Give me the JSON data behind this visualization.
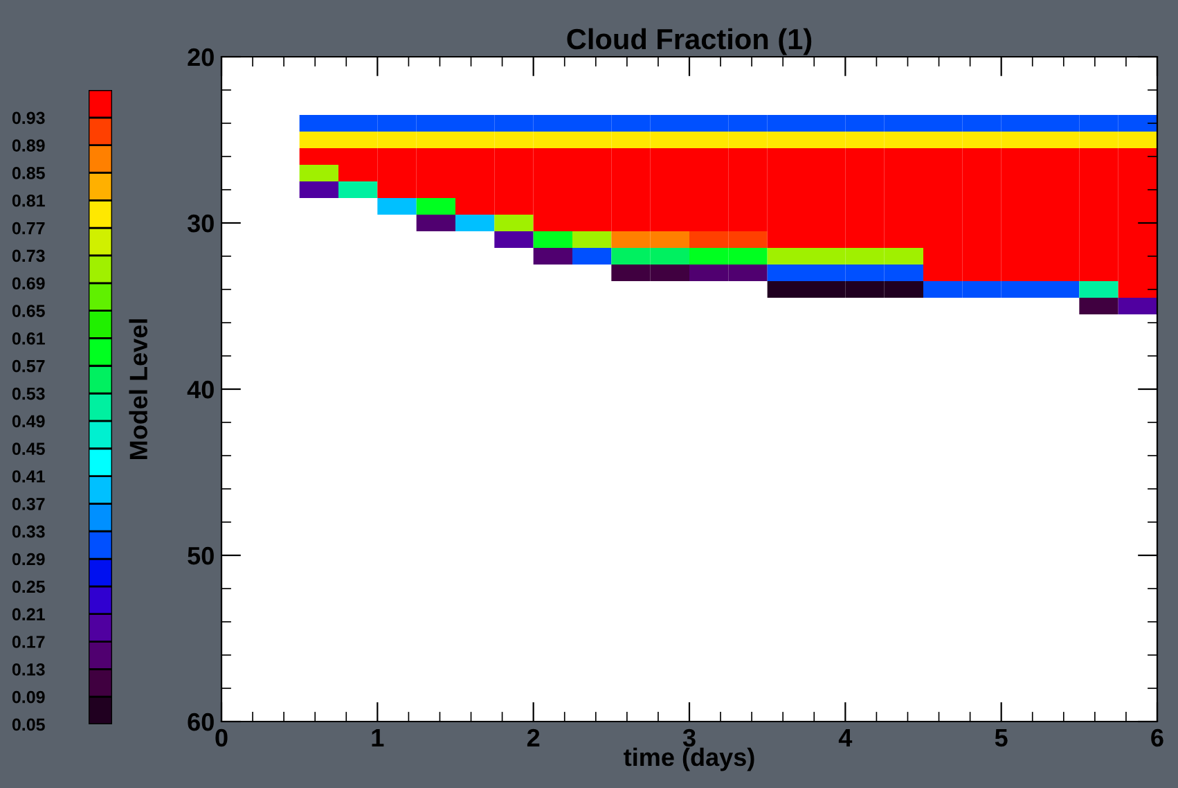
{
  "chart_data": {
    "type": "heatmap",
    "title": "Cloud Fraction (1)",
    "xlabel": "time (days)",
    "ylabel": "Model Level",
    "x": [
      0.625,
      0.875,
      1.125,
      1.375,
      1.625,
      1.875,
      2.125,
      2.375,
      2.625,
      2.875,
      3.125,
      3.375,
      3.625,
      3.875,
      4.125,
      4.375,
      4.625,
      4.875,
      5.125,
      5.375,
      5.625,
      5.875
    ],
    "y": [
      24,
      25,
      26,
      27,
      28,
      29,
      30,
      31,
      32,
      33,
      34,
      35
    ],
    "xlim": [
      0,
      6
    ],
    "xticks": [
      0,
      1,
      2,
      3,
      4,
      5,
      6
    ],
    "ylim": [
      60,
      20
    ],
    "yticks": [
      20,
      30,
      40,
      50,
      60
    ],
    "clim": [
      0.05,
      0.97
    ],
    "cticks": [
      0.05,
      0.09,
      0.13,
      0.17,
      0.21,
      0.25,
      0.29,
      0.33,
      0.37,
      0.41,
      0.45,
      0.49,
      0.53,
      0.57,
      0.61,
      0.65,
      0.69,
      0.73,
      0.77,
      0.81,
      0.85,
      0.89,
      0.93
    ],
    "colors": [
      "#200020",
      "#400040",
      "#500070",
      "#5000a0",
      "#3000d0",
      "#0010f0",
      "#0050ff",
      "#0090ff",
      "#00c0ff",
      "#00ffff",
      "#00f0d0",
      "#00f0a0",
      "#00f060",
      "#00ff20",
      "#20f000",
      "#60f000",
      "#a0f000",
      "#d0f000",
      "#ffe800",
      "#ffb000",
      "#ff8000",
      "#ff4000",
      "#ff0000"
    ],
    "cells": [
      [
        0.3,
        0.3,
        0.3,
        0.3,
        0.3,
        0.3,
        0.3,
        0.3,
        0.3,
        0.3,
        0.3,
        0.3,
        0.3,
        0.3,
        0.3,
        0.3,
        0.3,
        0.3,
        0.3,
        0.3,
        0.3,
        0.3
      ],
      [
        0.8,
        0.8,
        0.8,
        0.8,
        0.8,
        0.8,
        0.8,
        0.8,
        0.8,
        0.8,
        0.8,
        0.8,
        0.8,
        0.8,
        0.8,
        0.8,
        0.8,
        0.8,
        0.8,
        0.8,
        0.8,
        0.8
      ],
      [
        0.95,
        0.95,
        0.95,
        0.95,
        0.95,
        0.95,
        0.95,
        0.95,
        0.95,
        0.95,
        0.95,
        0.95,
        0.95,
        0.95,
        0.95,
        0.95,
        0.95,
        0.95,
        0.95,
        0.95,
        0.95,
        0.95
      ],
      [
        0.7,
        0.95,
        0.95,
        0.95,
        0.95,
        0.95,
        0.95,
        0.95,
        0.95,
        0.95,
        0.95,
        0.95,
        0.95,
        0.95,
        0.95,
        0.95,
        0.95,
        0.95,
        0.95,
        0.95,
        0.95,
        0.95
      ],
      [
        0.2,
        0.5,
        0.95,
        0.95,
        0.95,
        0.95,
        0.95,
        0.95,
        0.95,
        0.95,
        0.95,
        0.95,
        0.95,
        0.95,
        0.95,
        0.95,
        0.95,
        0.95,
        0.95,
        0.95,
        0.95,
        0.95
      ],
      [
        null,
        null,
        0.4,
        0.6,
        0.95,
        0.95,
        0.95,
        0.95,
        0.95,
        0.95,
        0.95,
        0.95,
        0.95,
        0.95,
        0.95,
        0.95,
        0.95,
        0.95,
        0.95,
        0.95,
        0.95,
        0.95
      ],
      [
        null,
        null,
        null,
        0.15,
        0.4,
        0.7,
        0.95,
        0.95,
        0.95,
        0.95,
        0.95,
        0.95,
        0.95,
        0.95,
        0.95,
        0.95,
        0.95,
        0.95,
        0.95,
        0.95,
        0.95,
        0.95
      ],
      [
        null,
        null,
        null,
        null,
        null,
        0.2,
        0.6,
        0.7,
        0.85,
        0.85,
        0.9,
        0.9,
        0.95,
        0.95,
        0.95,
        0.95,
        0.95,
        0.95,
        0.95,
        0.95,
        0.95,
        0.95
      ],
      [
        null,
        null,
        null,
        null,
        null,
        null,
        0.15,
        0.3,
        0.55,
        0.55,
        0.6,
        0.6,
        0.7,
        0.7,
        0.7,
        0.7,
        0.95,
        0.95,
        0.95,
        0.95,
        0.95,
        0.95
      ],
      [
        null,
        null,
        null,
        null,
        null,
        null,
        null,
        null,
        0.1,
        0.1,
        0.15,
        0.15,
        0.3,
        0.3,
        0.3,
        0.3,
        0.95,
        0.95,
        0.95,
        0.95,
        0.95,
        0.95
      ],
      [
        null,
        null,
        null,
        null,
        null,
        null,
        null,
        null,
        null,
        null,
        null,
        null,
        0.07,
        0.07,
        0.07,
        0.07,
        0.3,
        0.3,
        0.3,
        0.3,
        0.5,
        0.95
      ],
      [
        null,
        null,
        null,
        null,
        null,
        null,
        null,
        null,
        null,
        null,
        null,
        null,
        null,
        null,
        null,
        null,
        null,
        null,
        null,
        null,
        0.1,
        0.2
      ]
    ]
  }
}
